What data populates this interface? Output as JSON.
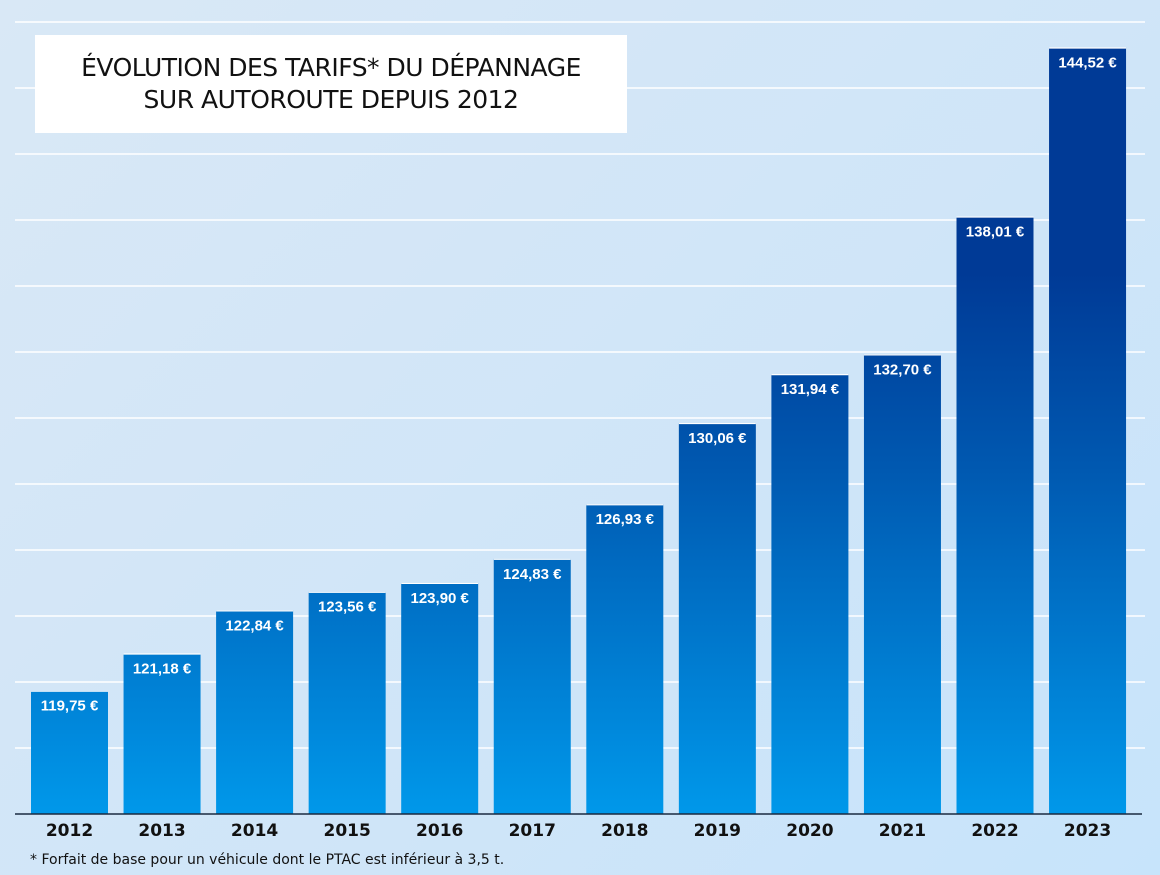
{
  "chart_data": {
    "type": "bar",
    "title": [
      "ÉVOLUTION DES TARIFS* DU DÉPANNAGE",
      "SUR AUTOROUTE DEPUIS 2012"
    ],
    "categories": [
      "2012",
      "2013",
      "2014",
      "2015",
      "2016",
      "2017",
      "2018",
      "2019",
      "2020",
      "2021",
      "2022",
      "2023"
    ],
    "values": [
      119.75,
      121.18,
      122.84,
      123.56,
      123.9,
      124.83,
      126.93,
      130.06,
      131.94,
      132.7,
      138.01,
      144.52
    ],
    "data_labels": [
      "119,75 €",
      "121,18 €",
      "122,84 €",
      "123,56 €",
      "123,90 €",
      "124,83 €",
      "126,93 €",
      "130,06 €",
      "131,94 €",
      "132,70 €",
      "138,01 €",
      "144,52 €"
    ],
    "unit": "€",
    "ylim": [
      115,
      146.35
    ],
    "grid": true,
    "xlabel": "",
    "ylabel": "",
    "colors": {
      "bar_top": "#003a96",
      "bar_bottom": "#0098ea",
      "background": "#d3e7f8",
      "grid": "#ffffff"
    },
    "footnote": "* Forfait de base pour un véhicule dont le PTAC est inférieur à 3,5 t."
  }
}
